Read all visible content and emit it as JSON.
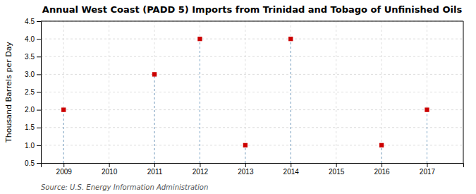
{
  "chart_data": {
    "type": "scatter",
    "title": "Annual West Coast (PADD 5) Imports from Trinidad and Tobago of Unfinished Oils",
    "ylabel": "Thousand Barrels per Day",
    "annotation": "Source: U.S. Energy Information Administration",
    "x": [
      2009,
      2011,
      2012,
      2013,
      2014,
      2016,
      2017
    ],
    "values": [
      2.0,
      3.0,
      4.0,
      1.0,
      4.0,
      1.0,
      2.0
    ],
    "color": "#cc0000",
    "marker": "square",
    "xlim": [
      2008.5,
      2017.8
    ],
    "ylim": [
      0.5,
      4.5
    ],
    "xticks": [
      2009,
      2010,
      2011,
      2012,
      2013,
      2014,
      2015,
      2016,
      2017
    ],
    "yticks": [
      0.5,
      {
        "value": 1.0,
        "label": "1.0"
      },
      1.5,
      {
        "value": 2.0,
        "label": "2.0"
      },
      2.5,
      {
        "value": 3.0,
        "label": "3.0"
      },
      3.5,
      {
        "value": 4.0,
        "label": "4.0"
      },
      4.5
    ],
    "grid": true
  }
}
